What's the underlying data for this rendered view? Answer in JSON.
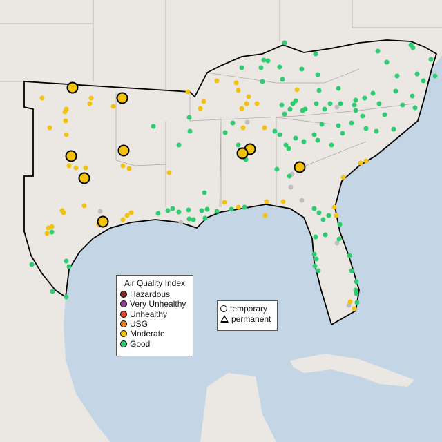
{
  "legend": {
    "title": "Air Quality Index",
    "categories": [
      {
        "label": "Hazardous",
        "color": "#7e2a25"
      },
      {
        "label": "Very Unhealthy",
        "color": "#8f3f97"
      },
      {
        "label": "Unhealthy",
        "color": "#e8412e"
      },
      {
        "label": "USG",
        "color": "#e87e22"
      },
      {
        "label": "Moderate",
        "color": "#f2c20e"
      },
      {
        "label": "Good",
        "color": "#2ecc71"
      }
    ]
  },
  "monitor_types": {
    "temporary": "temporary",
    "permanent": "permanent"
  },
  "colors": {
    "land": "#ebe7e3",
    "water": "#c4d6e6",
    "no_data": "#bfbfbf",
    "region_outline": "#000000"
  }
}
